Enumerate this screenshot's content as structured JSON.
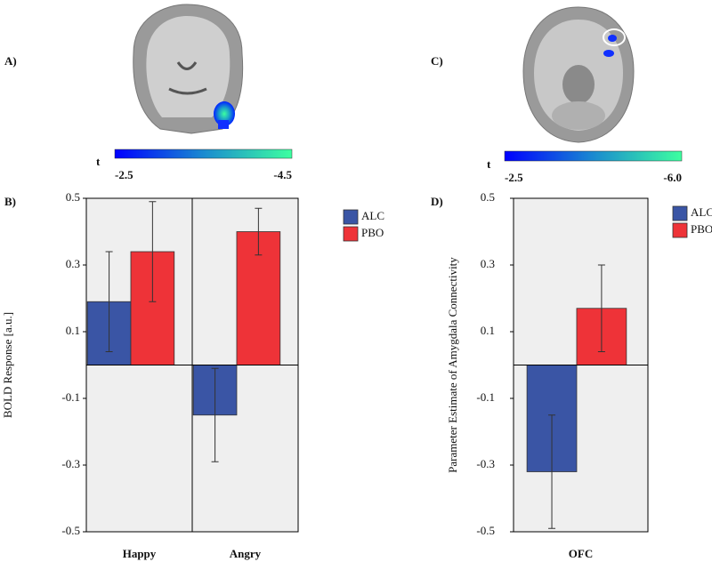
{
  "figure": {
    "panel_labels": [
      "A)",
      "B)",
      "C)",
      "D)"
    ],
    "colorbars": [
      {
        "label": "t",
        "ticks": [
          -2.5,
          -4.5
        ]
      },
      {
        "label": "t",
        "ticks": [
          -2.5,
          {
            "value": -6,
            "label": "-6.0"
          }
        ]
      }
    ]
  },
  "chart_data": [
    {
      "type": "bar",
      "ylabel": "BOLD Response [a.u.]",
      "categories": [
        "Happy",
        "Angry"
      ],
      "series": [
        {
          "name": "ALC",
          "color": "#3a55a5",
          "values": [
            0.19,
            -0.15
          ],
          "errors": [
            0.15,
            0.14
          ]
        },
        {
          "name": "PBO",
          "color": "#ee3338",
          "values": [
            0.34,
            0.4
          ],
          "errors": [
            0.15,
            0.07
          ]
        }
      ],
      "ylim": [
        -0.5,
        0.5
      ],
      "yticks": [
        -0.5,
        -0.3,
        -0.1,
        0.1,
        0.3,
        0.5
      ]
    },
    {
      "type": "bar",
      "ylabel": "Parameter Estimate of Amygdala Connectivity",
      "categories": [
        "OFC"
      ],
      "series": [
        {
          "name": "ALC",
          "color": "#3a55a5",
          "values": [
            -0.32
          ],
          "errors": [
            0.17
          ]
        },
        {
          "name": "PBO",
          "color": "#ee3338",
          "values": [
            0.17
          ],
          "errors": [
            0.13
          ]
        }
      ],
      "ylim": [
        -0.5,
        0.5
      ],
      "yticks": [
        -0.5,
        -0.3,
        -0.1,
        0.1,
        0.3,
        0.5
      ]
    }
  ]
}
